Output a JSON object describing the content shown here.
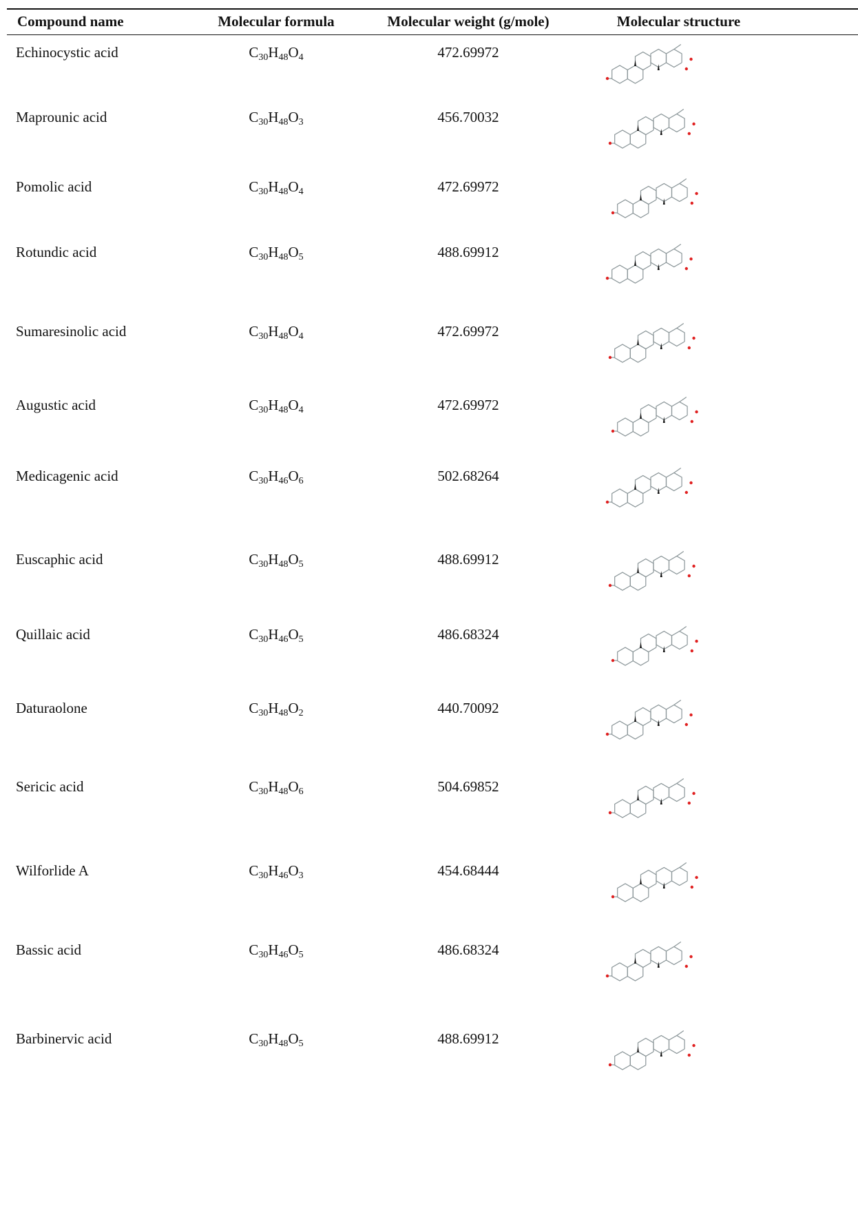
{
  "headers": {
    "compound_name": "Compound name",
    "molecular_formula": "Molecular formula",
    "molecular_weight": "Molecular weight (g/mole)",
    "molecular_structure": "Molecular structure"
  },
  "rows": [
    {
      "name": "Echinocystic acid",
      "formula": {
        "h": "48",
        "o": "4"
      },
      "weight": "472.69972"
    },
    {
      "name": "Maprounic acid",
      "formula": {
        "h": "48",
        "o": "3"
      },
      "weight": "456.70032"
    },
    {
      "name": "Pomolic acid",
      "formula": {
        "h": "48",
        "o": "4"
      },
      "weight": "472.69972"
    },
    {
      "name": "Rotundic acid",
      "formula": {
        "h": "48",
        "o": "5"
      },
      "weight": "488.69912"
    },
    {
      "name": "Sumaresinolic acid",
      "formula": {
        "h": "48",
        "o": "4"
      },
      "weight": "472.69972"
    },
    {
      "name": "Augustic acid",
      "formula": {
        "h": "48",
        "o": "4"
      },
      "weight": "472.69972"
    },
    {
      "name": "Medicagenic acid",
      "formula": {
        "h": "46",
        "o": "6"
      },
      "weight": "502.68264"
    },
    {
      "name": "Euscaphic acid",
      "formula": {
        "h": "48",
        "o": "5"
      },
      "weight": "488.69912"
    },
    {
      "name": "Quillaic acid",
      "formula": {
        "h": "46",
        "o": "5"
      },
      "weight": "486.68324"
    },
    {
      "name": "Daturaolone",
      "formula": {
        "h": "48",
        "o": "2"
      },
      "weight": "440.70092"
    },
    {
      "name": "Sericic acid",
      "formula": {
        "h": "48",
        "o": "6"
      },
      "weight": "504.69852"
    },
    {
      "name": "Wilforlide A",
      "formula": {
        "h": "46",
        "o": "3"
      },
      "weight": "454.68444"
    },
    {
      "name": "Bassic acid",
      "formula": {
        "h": "46",
        "o": "5"
      },
      "weight": "486.68324"
    },
    {
      "name": "Barbinervic acid",
      "formula": {
        "h": "48",
        "o": "5"
      },
      "weight": "488.69912"
    }
  ],
  "formula_parts": {
    "c": "C",
    "c_count": "30",
    "h": "H",
    "o": "O"
  }
}
